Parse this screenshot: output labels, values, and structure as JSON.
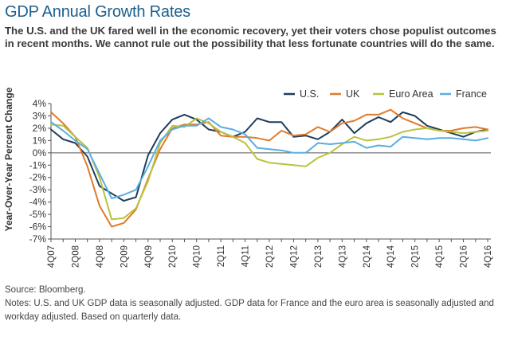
{
  "title": "GDP Annual Growth Rates",
  "subtitle": "The U.S. and the UK fared well in the economic recovery, yet their voters chose populist outcomes in recent months. We cannot rule out the possibility that less fortunate countries will do the same.",
  "footer": {
    "source": "Source: Bloomberg.",
    "notes": "Notes: U.S. and UK GDP data is seasonally adjusted. GDP data for France and the euro area is seasonally adjusted and workday adjusted. Based on quarterly data."
  },
  "colors": {
    "us": "#1f3d5c",
    "uk": "#e07b2c",
    "euro": "#b9c33f",
    "france": "#5aaee0",
    "title": "#1d5f8c"
  },
  "chart_data": {
    "type": "line",
    "ylabel": "Year-Over-Year Percent Change",
    "ylim": [
      -7,
      4
    ],
    "yticks": [
      "4%",
      "3%",
      "2%",
      "1%",
      "0%",
      "-1%",
      "-2%",
      "-3%",
      "-4%",
      "-5%",
      "-6%",
      "-7%"
    ],
    "ytick_values": [
      4,
      3,
      2,
      1,
      0,
      -1,
      -2,
      -3,
      -4,
      -5,
      -6,
      -7
    ],
    "grid": false,
    "legend_position": "top-right",
    "x": [
      "4Q07",
      "1Q08",
      "2Q08",
      "3Q08",
      "4Q08",
      "1Q09",
      "2Q09",
      "3Q09",
      "4Q09",
      "1Q10",
      "2Q10",
      "3Q10",
      "4Q10",
      "1Q11",
      "2Q11",
      "3Q11",
      "4Q11",
      "1Q12",
      "2Q12",
      "3Q12",
      "4Q12",
      "1Q13",
      "2Q13",
      "3Q13",
      "4Q13",
      "1Q14",
      "2Q14",
      "3Q14",
      "4Q14",
      "1Q15",
      "2Q15",
      "3Q15",
      "4Q15",
      "1Q16",
      "2Q16",
      "3Q16",
      "4Q16"
    ],
    "xtick_labels": [
      "4Q07",
      "2Q08",
      "4Q08",
      "2Q09",
      "4Q09",
      "2Q10",
      "4Q10",
      "2Q11",
      "4Q11",
      "2Q12",
      "4Q12",
      "2Q13",
      "4Q13",
      "2Q14",
      "4Q14",
      "2Q15",
      "4Q15",
      "2Q16",
      "4Q16"
    ],
    "series": [
      {
        "name": "U.S.",
        "color_key": "us",
        "values": [
          1.9,
          1.1,
          0.8,
          -0.3,
          -2.7,
          -3.3,
          -3.9,
          -3.6,
          -0.2,
          1.6,
          2.7,
          3.1,
          2.7,
          1.9,
          1.7,
          1.3,
          1.7,
          2.8,
          2.5,
          2.5,
          1.3,
          1.4,
          1.1,
          1.7,
          2.7,
          1.6,
          2.4,
          2.9,
          2.5,
          3.3,
          3.0,
          2.2,
          1.9,
          1.6,
          1.3,
          1.7,
          1.9
        ]
      },
      {
        "name": "UK",
        "color_key": "uk",
        "values": [
          3.3,
          2.4,
          1.3,
          -1.1,
          -4.3,
          -6.0,
          -5.7,
          -4.6,
          -2.1,
          0.3,
          2.0,
          2.3,
          2.3,
          2.5,
          1.4,
          1.3,
          1.3,
          1.2,
          1.0,
          1.8,
          1.4,
          1.5,
          2.1,
          1.7,
          2.4,
          2.6,
          3.1,
          3.1,
          3.5,
          2.8,
          2.4,
          2.0,
          1.8,
          1.8,
          2.0,
          2.1,
          1.9
        ]
      },
      {
        "name": "Euro Area",
        "color_key": "euro",
        "values": [
          2.3,
          2.2,
          1.3,
          0.4,
          -2.0,
          -5.4,
          -5.3,
          -4.5,
          -2.3,
          0.8,
          2.2,
          2.1,
          2.8,
          2.4,
          1.7,
          1.3,
          0.8,
          -0.5,
          -0.8,
          -0.9,
          -1.0,
          -1.1,
          -0.4,
          0.0,
          0.7,
          1.3,
          1.0,
          1.1,
          1.3,
          1.7,
          1.9,
          2.0,
          1.8,
          1.7,
          1.6,
          1.7,
          1.8
        ]
      },
      {
        "name": "France",
        "color_key": "france",
        "values": [
          2.5,
          1.8,
          1.0,
          0.3,
          -1.7,
          -3.7,
          -3.4,
          -3.0,
          -1.1,
          1.0,
          1.9,
          2.2,
          2.2,
          2.8,
          2.1,
          1.9,
          1.5,
          0.4,
          0.3,
          0.2,
          0.0,
          0.0,
          0.8,
          0.7,
          0.8,
          0.9,
          0.4,
          0.6,
          0.5,
          1.3,
          1.2,
          1.1,
          1.2,
          1.2,
          1.1,
          1.0,
          1.2
        ]
      }
    ]
  }
}
